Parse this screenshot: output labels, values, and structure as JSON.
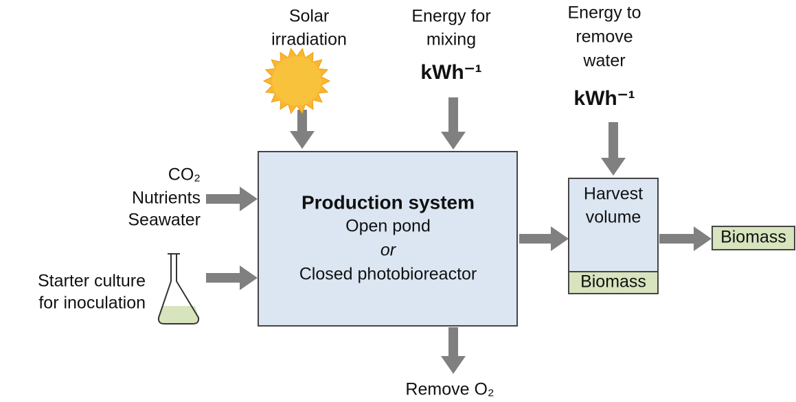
{
  "solar_label": [
    "Solar",
    "irradiation"
  ],
  "mixing_label": [
    "Energy for",
    "mixing"
  ],
  "mixing_unit": "kWh⁻¹",
  "water_label": [
    "Energy to",
    "remove",
    "water"
  ],
  "water_unit": "kWh⁻¹",
  "feed_label": [
    "CO₂",
    "Nutrients",
    "Seawater"
  ],
  "starter_label": [
    "Starter culture",
    "for inoculation"
  ],
  "production_system": {
    "title": "Production system",
    "lines": [
      "Open pond",
      "or",
      "Closed photobioreactor"
    ]
  },
  "harvest": {
    "lines": [
      "Harvest",
      "volume"
    ],
    "product": "Biomass"
  },
  "output": "Biomass",
  "remove_label": "Remove O₂"
}
